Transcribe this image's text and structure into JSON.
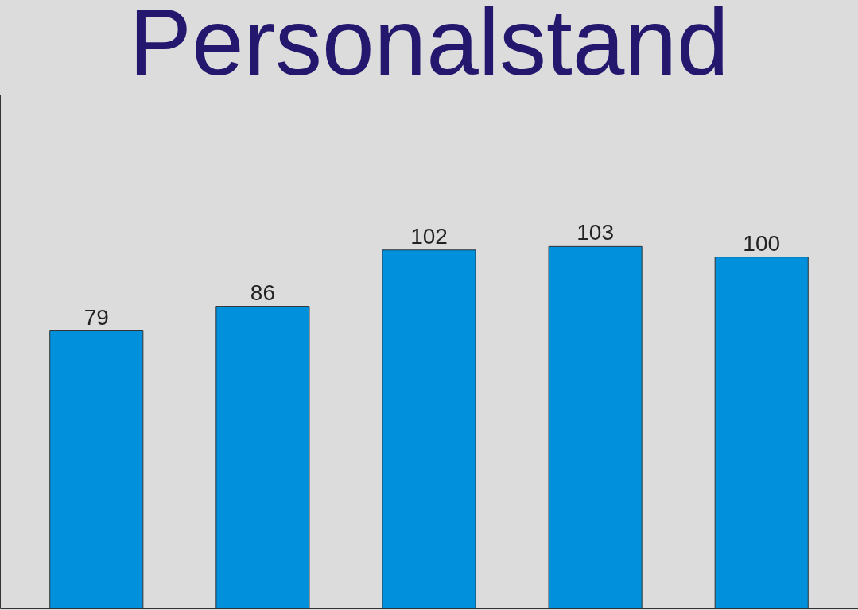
{
  "chart_data": {
    "type": "bar",
    "title": "Personalstand",
    "categories": [
      null,
      null,
      null,
      null,
      null
    ],
    "values": [
      79,
      86,
      102,
      103,
      100
    ],
    "color": "#0090dc",
    "data_labels": true
  }
}
